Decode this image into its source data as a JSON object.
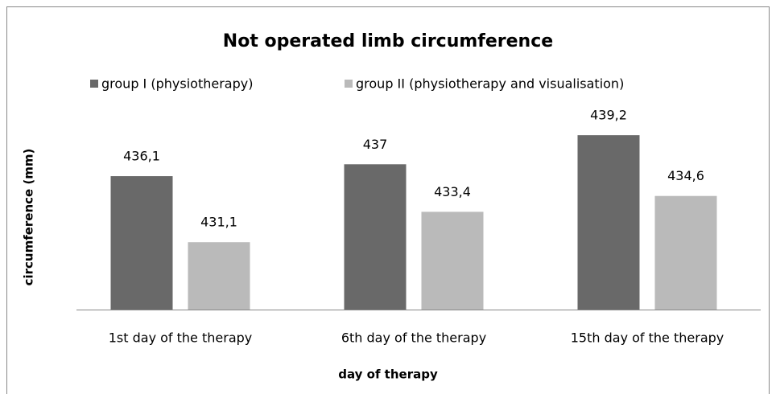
{
  "chart_data": {
    "type": "bar",
    "title": "Not operated limb circumference",
    "x_label": "day of therapy",
    "y_label": "circumference (mm)",
    "categories": [
      "1st day of the therapy",
      "6th day of the therapy",
      "15th day of the therapy"
    ],
    "series": [
      {
        "name": "group I (physiotherapy)",
        "color": "#696969",
        "values": [
          436.1,
          437,
          439.2
        ],
        "value_labels": [
          "436,1",
          "437",
          "439,2"
        ]
      },
      {
        "name": "group II (physiotherapy and visualisation)",
        "color": "#bababa",
        "values": [
          431.1,
          433.4,
          434.6
        ],
        "value_labels": [
          "431,1",
          "433,4",
          "434,6"
        ]
      }
    ],
    "ylim": [
      426,
      440
    ],
    "legend": "top"
  }
}
